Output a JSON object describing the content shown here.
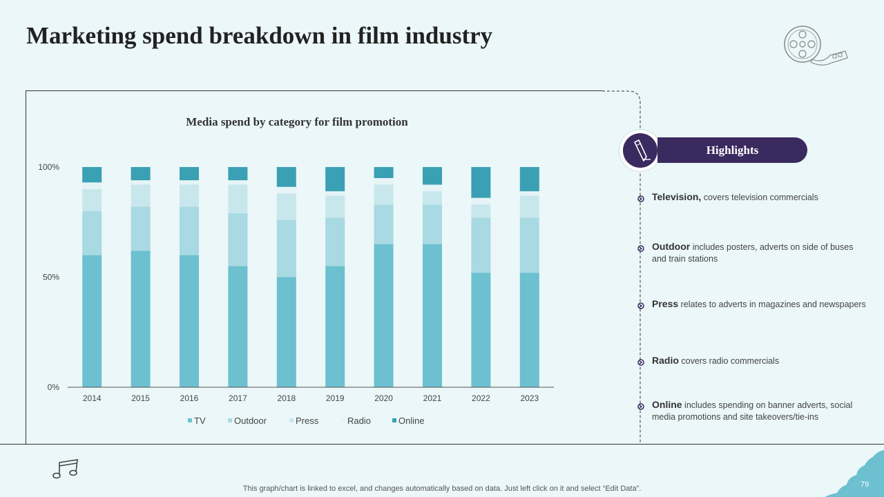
{
  "slide": {
    "title": "Marketing spend breakdown in film industry",
    "page_number": "79",
    "footer_note": "This graph/chart is linked to excel, and changes automatically based on data. Just left click on it and select “Edit Data”.",
    "icons": [
      "film-reel-icon",
      "music-notes-icon",
      "pen-icon"
    ]
  },
  "chart_data": {
    "type": "bar",
    "stacked": "100%",
    "title": "Media spend by category for film promotion",
    "categories": [
      "2014",
      "2015",
      "2016",
      "2017",
      "2018",
      "2019",
      "2020",
      "2021",
      "2022",
      "2023"
    ],
    "y_ticks": [
      "0%",
      "50%",
      "100%"
    ],
    "ylim": [
      0,
      100
    ],
    "legend_position": "bottom",
    "series": [
      {
        "name": "TV",
        "color": "#6cc0cf",
        "values": [
          60,
          62,
          60,
          55,
          50,
          55,
          65,
          65,
          52,
          52
        ]
      },
      {
        "name": "Outdoor",
        "color": "#a9d9e2",
        "values": [
          20,
          20,
          22,
          24,
          26,
          22,
          18,
          18,
          25,
          25
        ]
      },
      {
        "name": "Press",
        "color": "#c8e7ec",
        "values": [
          10,
          10,
          10,
          13,
          12,
          10,
          9,
          6,
          6,
          10
        ]
      },
      {
        "name": "Radio",
        "color": "#e6f4f6",
        "values": [
          3,
          2,
          2,
          2,
          3,
          2,
          3,
          3,
          3,
          2
        ]
      },
      {
        "name": "Online",
        "color": "#3aa0b3",
        "values": [
          7,
          6,
          6,
          6,
          9,
          11,
          5,
          8,
          14,
          11
        ]
      }
    ]
  },
  "highlights": {
    "heading": "Highlights",
    "items": [
      {
        "term": "Television,",
        "desc": " covers television commercials"
      },
      {
        "term": "Outdoor",
        "desc": " includes posters, adverts on side of buses and train stations"
      },
      {
        "term": "Press",
        "desc": " relates to adverts in magazines and newspapers"
      },
      {
        "term": "Radio",
        "desc": " covers radio commercials"
      },
      {
        "term": "Online",
        "desc": " includes spending on banner adverts, social media promotions and site takeovers/tie-ins"
      }
    ]
  },
  "colors": {
    "accent": "#3b2a5f",
    "background": "#ebf7f8"
  }
}
